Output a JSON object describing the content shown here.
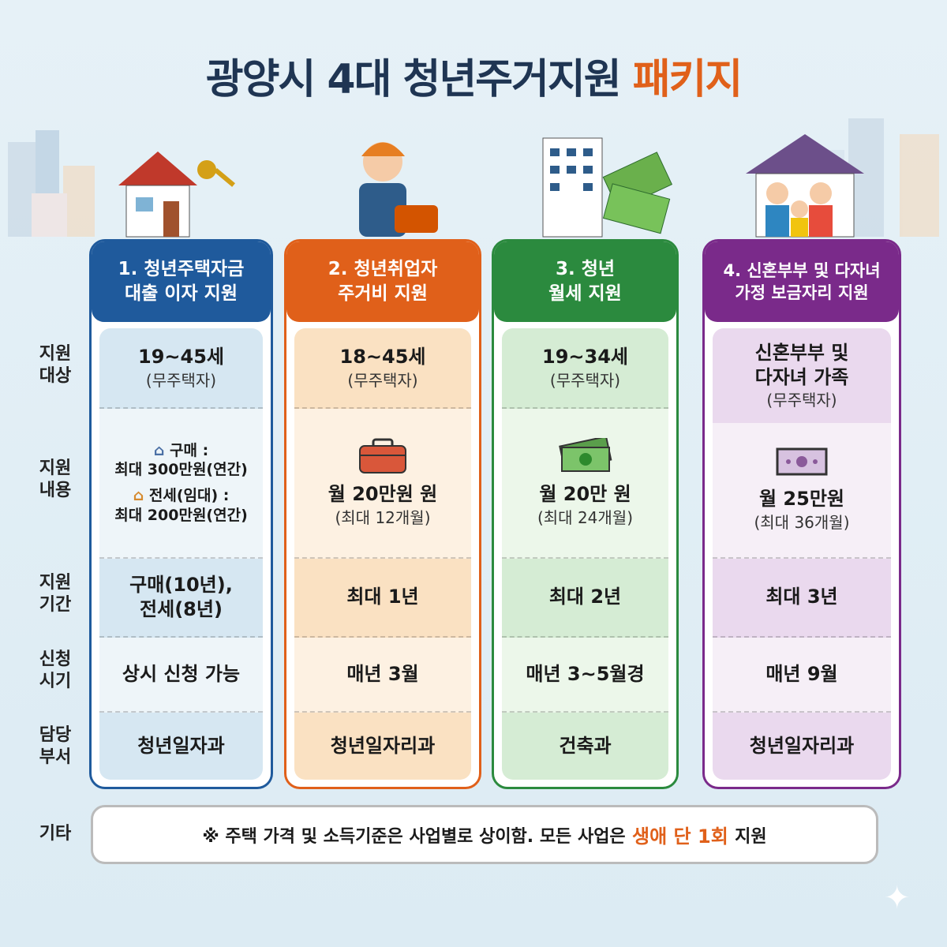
{
  "title": {
    "main": "광양시 4대 청년주거지원",
    "accent": "패키지"
  },
  "colors": {
    "title": "#1f3553",
    "accent": "#e0601a",
    "col1": "#1f5a9c",
    "col2": "#e0601a",
    "col3": "#2b8a3e",
    "col4": "#7a2a8a"
  },
  "row_labels": [
    "지원\n대상",
    "지원\n내용",
    "지원\n기간",
    "신청\n시기",
    "담당\n부서"
  ],
  "row_label_lines": [
    [
      "지원",
      "대상"
    ],
    [
      "지원",
      "내용"
    ],
    [
      "지원",
      "기간"
    ],
    [
      "신청",
      "시기"
    ],
    [
      "담당",
      "부서"
    ]
  ],
  "columns": [
    {
      "title1": "1. 청년주택자금",
      "title2": "대출 이자 지원",
      "target": "19~45세",
      "target_note": "(무주택자)",
      "content": {
        "buy_label": "구매 :",
        "buy_value": "최대 300만원(연간)",
        "lease_label": "전세(임대) :",
        "lease_value": "최대 200만원(연간)",
        "icons": [
          "house-icon",
          "house-icon"
        ]
      },
      "period1": "구매(10년),",
      "period2": "전세(8년)",
      "apply": "상시 신청 가능",
      "dept": "청년일자과"
    },
    {
      "title1": "2. 청년취업자",
      "title2": "주거비 지원",
      "target": "18~45세",
      "target_note": "(무주택자)",
      "content": {
        "icon": "toolbox-icon",
        "amount": "월 20만원 원",
        "note": "(최대 12개월)"
      },
      "period": "최대 1년",
      "apply": "매년 3월",
      "dept": "청년일자리과"
    },
    {
      "title1": "3. 청년",
      "title2": "월세 지원",
      "target": "19~34세",
      "target_note": "(무주택자)",
      "content": {
        "icon": "money-icon",
        "amount": "월 20만 원",
        "note": "(최대 24개월)"
      },
      "period": "최대 2년",
      "apply": "매년 3~5월경",
      "dept": "건축과"
    },
    {
      "title1": "4. 신혼부부 및 다자녀",
      "title2": "가정 보금자리 지원",
      "target": "신혼부부 및",
      "target2": "다자녀 가족",
      "target_note": "(무주택자)",
      "content": {
        "icon": "banknote-icon",
        "amount": "월 25만원",
        "note": "(최대 36개월)"
      },
      "period": "최대 3년",
      "apply": "매년 9월",
      "dept": "청년일자리과"
    }
  ],
  "etc": {
    "label": "기타",
    "text": "※ 주택 가격 및 소득기준은 사업별로 상이함. 모든 사업은",
    "highlight": "생애 단 1회",
    "tail": "지원"
  }
}
